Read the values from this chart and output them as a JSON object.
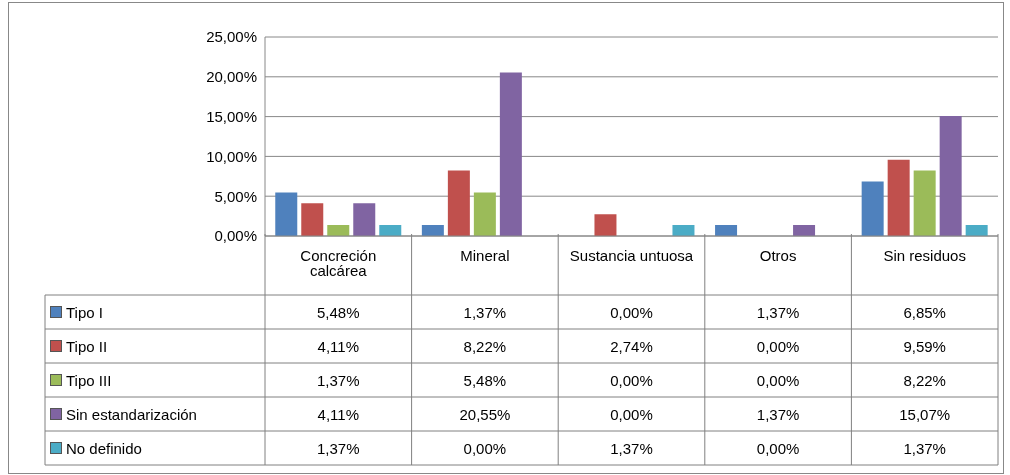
{
  "chart_data": {
    "type": "bar",
    "categories": [
      "Concreción calcárea",
      "Mineral",
      "Sustancia untuosa",
      "Otros",
      "Sin residuos"
    ],
    "series": [
      {
        "name": "Tipo I",
        "color": "#4f81bd",
        "values": [
          5.48,
          1.37,
          0,
          1.37,
          6.85
        ],
        "value_labels": [
          "5,48%",
          "1,37%",
          "0,00%",
          "1,37%",
          "6,85%"
        ]
      },
      {
        "name": "Tipo II",
        "color": "#c0504d",
        "values": [
          4.11,
          8.22,
          2.74,
          0,
          9.59
        ],
        "value_labels": [
          "4,11%",
          "8,22%",
          "2,74%",
          "0,00%",
          "9,59%"
        ]
      },
      {
        "name": "Tipo III",
        "color": "#9bbb59",
        "values": [
          1.37,
          5.48,
          0,
          0,
          8.22
        ],
        "value_labels": [
          "1,37%",
          "5,48%",
          "0,00%",
          "0,00%",
          "8,22%"
        ]
      },
      {
        "name": "Sin estandarización",
        "color": "#8064a2",
        "values": [
          4.11,
          20.55,
          0,
          1.37,
          15.07
        ],
        "value_labels": [
          "4,11%",
          "20,55%",
          "0,00%",
          "1,37%",
          "15,07%"
        ]
      },
      {
        "name": "No definido",
        "color": "#4bacc6",
        "values": [
          1.37,
          0,
          1.37,
          0,
          1.37
        ],
        "value_labels": [
          "1,37%",
          "0,00%",
          "1,37%",
          "0,00%",
          "1,37%"
        ]
      }
    ],
    "ylim": [
      0,
      25
    ],
    "yticks": [
      {
        "value": 0,
        "label": "0,00%"
      },
      {
        "value": 5,
        "label": "5,00%"
      },
      {
        "value": 10,
        "label": "10,00%"
      },
      {
        "value": 15,
        "label": "15,00%"
      },
      {
        "value": 20,
        "label": "20,00%"
      },
      {
        "value": 25,
        "label": "25,00%"
      }
    ],
    "grid": "y",
    "legend": "bottom"
  }
}
